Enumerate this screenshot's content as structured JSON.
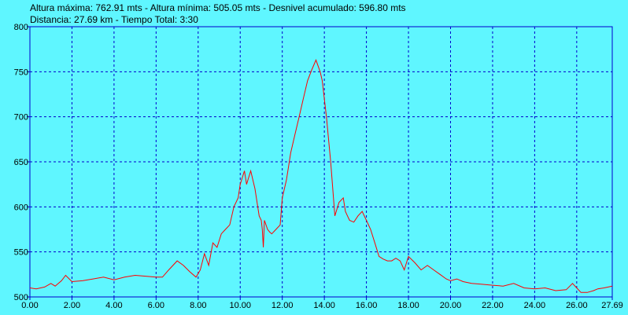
{
  "header": {
    "line1": "Altura máxima: 762.91 mts - Altura mínima: 505.05 mts - Desnivel acumulado: 596.80 mts",
    "line2": "Distancia: 27.69 km - Tiempo Total: 3:30"
  },
  "colors": {
    "background": "#5ff6ff",
    "line": "#ff0000",
    "grid": "#0000cc",
    "axis": "#0000cc"
  },
  "chart_data": {
    "type": "line",
    "title": "",
    "xlabel": "",
    "ylabel": "",
    "xlim": [
      0,
      27.69
    ],
    "ylim": [
      500,
      800
    ],
    "grid": true,
    "x_ticks": [
      "0.00",
      "2.00",
      "4.00",
      "6.00",
      "8.00",
      "10.00",
      "12.00",
      "14.00",
      "16.00",
      "18.00",
      "20.00",
      "22.00",
      "24.00",
      "26.00",
      "27.69"
    ],
    "x_tick_values": [
      0,
      2,
      4,
      6,
      8,
      10,
      12,
      14,
      16,
      18,
      20,
      22,
      24,
      26,
      27.69
    ],
    "y_ticks": [
      "500",
      "550",
      "600",
      "650",
      "700",
      "750",
      "800"
    ],
    "y_tick_values": [
      500,
      550,
      600,
      650,
      700,
      750,
      800
    ],
    "series": [
      {
        "x": [
          0,
          0.3,
          0.7,
          1.0,
          1.2,
          1.5,
          1.7,
          2.0,
          2.5,
          3.0,
          3.5,
          4.0,
          4.5,
          5.0,
          5.5,
          6.0,
          6.3,
          6.6,
          7.0,
          7.3,
          7.6,
          7.9,
          8.1,
          8.3,
          8.5,
          8.7,
          8.9,
          9.1,
          9.3,
          9.5,
          9.7,
          9.9,
          10.0,
          10.2,
          10.3,
          10.5,
          10.7,
          10.9,
          11.0,
          11.05,
          11.1,
          11.15,
          11.3,
          11.4,
          11.5,
          11.7,
          11.9,
          12.0,
          12.2,
          12.4,
          12.6,
          12.8,
          13.0,
          13.2,
          13.4,
          13.6,
          13.8,
          13.9,
          14.0,
          14.1,
          14.3,
          14.5,
          14.7,
          14.9,
          15.0,
          15.1,
          15.2,
          15.4,
          15.6,
          15.8,
          16.0,
          16.2,
          16.4,
          16.6,
          16.8,
          17.0,
          17.2,
          17.4,
          17.6,
          17.8,
          18.0,
          18.3,
          18.6,
          18.9,
          19.2,
          19.5,
          19.8,
          20.0,
          20.3,
          20.6,
          21.0,
          21.5,
          22.0,
          22.5,
          23.0,
          23.5,
          24.0,
          24.5,
          25.0,
          25.5,
          25.8,
          26.0,
          26.2,
          26.5,
          26.8,
          27.0,
          27.3,
          27.69
        ],
        "y": [
          510,
          509,
          511,
          515,
          512,
          518,
          524,
          517,
          518,
          520,
          522,
          519,
          522,
          524,
          523,
          522,
          522,
          530,
          540,
          535,
          528,
          522,
          530,
          548,
          535,
          560,
          555,
          570,
          575,
          580,
          600,
          610,
          625,
          640,
          625,
          640,
          620,
          590,
          585,
          575,
          555,
          585,
          575,
          572,
          570,
          575,
          580,
          610,
          630,
          660,
          680,
          700,
          720,
          740,
          752,
          763,
          750,
          740,
          720,
          700,
          650,
          590,
          605,
          610,
          595,
          590,
          585,
          583,
          590,
          595,
          585,
          575,
          560,
          545,
          542,
          540,
          540,
          543,
          540,
          530,
          545,
          538,
          530,
          535,
          530,
          525,
          520,
          518,
          520,
          517,
          515,
          514,
          513,
          512,
          515,
          510,
          509,
          510,
          507,
          508,
          515,
          510,
          505,
          505,
          507,
          509,
          510,
          512
        ]
      }
    ]
  }
}
